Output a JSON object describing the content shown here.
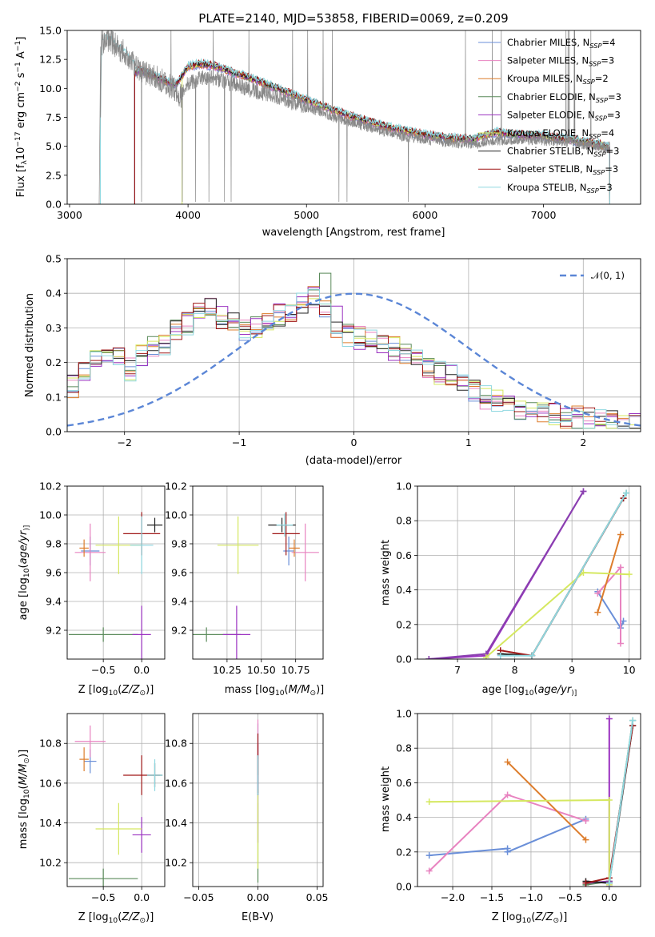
{
  "chart_data": [
    {
      "type": "line",
      "title": "PLATE=2140, MJD=53858, FIBERID=0069, z=0.209",
      "xlabel": "wavelength [Angstrom, rest frame]",
      "ylabel": "Flux [f$_\\lambda$10$^{-17}$ erg cm$^{-2}$ s$^{-1}$ A$^{-1}$]",
      "ylabel_parts": [
        "Flux [f",
        "λ",
        "10",
        "−17",
        " erg cm",
        "−2",
        " s",
        "−1",
        " A",
        "−1",
        "]"
      ],
      "xlim": [
        2980,
        7820
      ],
      "ylim": [
        0,
        15
      ],
      "xticks": [
        3000,
        4000,
        5000,
        6000,
        7000
      ],
      "yticks": [
        0.0,
        2.5,
        5.0,
        7.5,
        10.0,
        12.5,
        15.0
      ],
      "legend_position": "top-right",
      "legend": [
        "Chabrier MILES, N$_{SSP}$=4",
        "Salpeter MILES, N$_{SSP}$=3",
        "Kroupa MILES, N$_{SSP}$=2",
        "Chabrier ELODIE, N$_{SSP}$=3",
        "Salpeter ELODIE, N$_{SSP}$=3",
        "Kroupa ELODIE, N$_{SSP}$=4",
        "Chabrier STELIB, N$_{SSP}$=3",
        "Salpeter STELIB, N$_{SSP}$=3",
        "Kroupa STELIB, N$_{SSP}$=3"
      ],
      "legend_parts": [
        [
          "Chabrier MILES, N",
          "SSP",
          "=4"
        ],
        [
          "Salpeter MILES, N",
          "SSP",
          "=3"
        ],
        [
          "Kroupa MILES, N",
          "SSP",
          "=2"
        ],
        [
          "Chabrier ELODIE, N",
          "SSP",
          "=3"
        ],
        [
          "Salpeter ELODIE, N",
          "SSP",
          "=3"
        ],
        [
          "Kroupa ELODIE, N",
          "SSP",
          "=4"
        ],
        [
          "Chabrier STELIB, N",
          "SSP",
          "=3"
        ],
        [
          "Salpeter STELIB, N",
          "SSP",
          "=3"
        ],
        [
          "Kroupa STELIB, N",
          "SSP",
          "=3"
        ]
      ],
      "data_spectrum": {
        "x": [
          3250,
          3270,
          3300,
          3350,
          3400,
          3450,
          3500,
          3550,
          3600,
          3650,
          3700,
          3750,
          3800,
          3850,
          3900,
          3950,
          4000,
          4100,
          4200,
          4300,
          4400,
          4500,
          4600,
          4700,
          4800,
          4900,
          5000,
          5200,
          5400,
          5600,
          5800,
          6000,
          6200,
          6400,
          6600,
          6800,
          7000,
          7200,
          7400,
          7550
        ],
        "y": [
          0,
          13.8,
          14.3,
          14.1,
          13.6,
          13.2,
          12.6,
          12.0,
          11.6,
          11.3,
          11.1,
          10.8,
          10.6,
          10.2,
          9.9,
          9.2,
          10.3,
          10.9,
          11.0,
          10.6,
          10.3,
          10.0,
          9.7,
          9.5,
          9.1,
          8.7,
          8.4,
          7.6,
          7.0,
          6.4,
          5.9,
          5.6,
          5.3,
          5.2,
          5.5,
          5.6,
          5.5,
          5.3,
          5.1,
          4.8
        ]
      },
      "model_spectrum": {
        "x": [
          3550,
          3600,
          3700,
          3800,
          3900,
          4000,
          4100,
          4200,
          4300,
          4400,
          4500,
          4600,
          4700,
          4800,
          4900,
          5000,
          5200,
          5400,
          5600,
          5800,
          6000,
          6200,
          6400,
          6600,
          6800,
          7000,
          7200,
          7400,
          7550
        ],
        "y": [
          11.3,
          11.6,
          11.1,
          10.7,
          10.3,
          11.9,
          12.1,
          12.0,
          11.7,
          11.3,
          11.0,
          10.6,
          10.2,
          9.8,
          9.4,
          9.0,
          8.2,
          7.5,
          6.9,
          6.4,
          6.0,
          5.7,
          5.6,
          6.2,
          6.0,
          5.9,
          5.6,
          5.3,
          5.0
        ]
      }
    },
    {
      "type": "line",
      "xlabel": "(data-model)/error",
      "ylabel": "Normed distribution",
      "xlim": [
        -2.5,
        2.5
      ],
      "ylim": [
        0,
        0.5
      ],
      "xticks": [
        -2,
        -1,
        0,
        1,
        2
      ],
      "yticks": [
        0.0,
        0.1,
        0.2,
        0.3,
        0.4,
        0.5
      ],
      "grid": true,
      "legend_position": "top-right",
      "legend": [
        "$\\mathcal{N}(0, 1)$"
      ],
      "legend_text": "𝒩(0, 1)",
      "curve": "standard normal density, dashed",
      "histogram_bins": [
        -2.5,
        -2.4,
        -2.3,
        -2.2,
        -2.1,
        -2.0,
        -1.9,
        -1.8,
        -1.7,
        -1.6,
        -1.5,
        -1.4,
        -1.3,
        -1.2,
        -1.1,
        -1.0,
        -0.9,
        -0.8,
        -0.7,
        -0.6,
        -0.5,
        -0.4,
        -0.3,
        -0.2,
        -0.1,
        0.0,
        0.1,
        0.2,
        0.3,
        0.4,
        0.5,
        0.6,
        0.7,
        0.8,
        0.9,
        1.0,
        1.1,
        1.2,
        1.3,
        1.4,
        1.5,
        1.6,
        1.7,
        1.8,
        1.9,
        2.0,
        2.1,
        2.2,
        2.3,
        2.4,
        2.5
      ],
      "histogram_profile": [
        0.13,
        0.17,
        0.2,
        0.22,
        0.21,
        0.18,
        0.22,
        0.25,
        0.25,
        0.29,
        0.31,
        0.35,
        0.36,
        0.33,
        0.31,
        0.29,
        0.3,
        0.32,
        0.34,
        0.35,
        0.37,
        0.39,
        0.36,
        0.3,
        0.28,
        0.27,
        0.28,
        0.26,
        0.24,
        0.22,
        0.21,
        0.19,
        0.17,
        0.16,
        0.14,
        0.12,
        0.1,
        0.09,
        0.08,
        0.07,
        0.06,
        0.055,
        0.05,
        0.045,
        0.04,
        0.035,
        0.03,
        0.03,
        0.025,
        0.025
      ]
    },
    {
      "type": "scatter",
      "xlabel": "Z [log$_{10}$($Z/Z_\\odot$)]",
      "xlabel_parts": [
        "Z [log",
        "10",
        "(",
        "Z/Z",
        "⊙",
        ")]"
      ],
      "ylabel": "age  [log$_{10}$($age/yr$)]",
      "ylabel_parts": [
        "age  [log",
        "10",
        "(",
        "age/yr",
        ")]"
      ],
      "xlim": [
        -0.97,
        0.3
      ],
      "ylim": [
        9.0,
        10.2
      ],
      "xticks": [
        -0.5,
        0.0
      ],
      "yticks": [
        9.2,
        9.4,
        9.6,
        9.8,
        10.0,
        10.2
      ],
      "points": [
        {
          "x": -0.67,
          "y": 9.75,
          "xerr": 0.12,
          "yerr": 0.1
        },
        {
          "x": -0.67,
          "y": 9.74,
          "xerr": 0.2,
          "yerr": 0.2
        },
        {
          "x": -0.75,
          "y": 9.77,
          "xerr": 0.06,
          "yerr": 0.06
        },
        {
          "x": -0.5,
          "y": 9.17,
          "xerr": 0.45,
          "yerr": 0.05
        },
        {
          "x": 0.0,
          "y": 9.17,
          "xerr": 0.12,
          "yerr": 0.2
        },
        {
          "x": -0.3,
          "y": 9.79,
          "xerr": 0.3,
          "yerr": 0.2
        },
        {
          "x": 0.17,
          "y": 9.93,
          "xerr": 0.1,
          "yerr": 0.05
        },
        {
          "x": 0.0,
          "y": 9.87,
          "xerr": 0.24,
          "yerr": 0.15
        },
        {
          "x": 0.0,
          "y": 9.79,
          "xerr": 0.15,
          "yerr": 0.2
        }
      ]
    },
    {
      "type": "scatter",
      "xlabel": "mass [log$_{10}$($M/M_\\odot$)]",
      "xlabel_parts": [
        "mass [log",
        "10",
        "(",
        "M/M",
        "⊙",
        ")]"
      ],
      "xlim": [
        10.0,
        10.95
      ],
      "ylim": [
        9.0,
        10.2
      ],
      "xticks": [
        10.25,
        10.5,
        10.75
      ],
      "yticks": [
        9.2,
        9.4,
        9.6,
        9.8,
        10.0,
        10.2
      ],
      "points": [
        {
          "x": 10.7,
          "y": 9.75,
          "xerr": 0.04,
          "yerr": 0.1
        },
        {
          "x": 10.82,
          "y": 9.74,
          "xerr": 0.1,
          "yerr": 0.2
        },
        {
          "x": 10.74,
          "y": 9.77,
          "xerr": 0.04,
          "yerr": 0.06
        },
        {
          "x": 10.1,
          "y": 9.17,
          "xerr": 0.25,
          "yerr": 0.05
        },
        {
          "x": 10.32,
          "y": 9.17,
          "xerr": 0.1,
          "yerr": 0.2
        },
        {
          "x": 10.33,
          "y": 9.79,
          "xerr": 0.15,
          "yerr": 0.2
        },
        {
          "x": 10.65,
          "y": 9.93,
          "xerr": 0.1,
          "yerr": 0.05
        },
        {
          "x": 10.68,
          "y": 9.87,
          "xerr": 0.1,
          "yerr": 0.15
        },
        {
          "x": 10.67,
          "y": 9.93,
          "xerr": 0.06,
          "yerr": 0.08
        }
      ]
    },
    {
      "type": "line",
      "xlabel": "age  [log$_{10}$($age/yr$)]",
      "xlabel_parts": [
        "age  [log",
        "10",
        "(",
        "age/yr",
        ")]"
      ],
      "ylabel": "mass weight",
      "xlim": [
        6.3,
        10.2
      ],
      "ylim": [
        0,
        1.0
      ],
      "xticks": [
        7,
        8,
        9,
        10
      ],
      "yticks": [
        0.0,
        0.2,
        0.4,
        0.6,
        0.8,
        1.0
      ],
      "grid": true,
      "series": [
        {
          "x": [
            9.45,
            9.85,
            9.9
          ],
          "y": [
            0.39,
            0.18,
            0.22
          ]
        },
        {
          "x": [
            9.45,
            9.85,
            9.85
          ],
          "y": [
            0.38,
            0.53,
            0.09
          ]
        },
        {
          "x": [
            9.45,
            9.85
          ],
          "y": [
            0.27,
            0.72
          ]
        },
        {
          "x": [
            7.75,
            8.3,
            9.95
          ],
          "y": [
            0.03,
            0.02,
            0.96
          ]
        },
        {
          "x": [
            6.5,
            7.5,
            9.2
          ],
          "y": [
            0.0,
            0.02,
            0.97
          ]
        },
        {
          "x": [
            6.5,
            7.5,
            9.2
          ],
          "y": [
            0.0,
            0.03,
            0.97
          ]
        },
        {
          "x": [
            7.75,
            8.3,
            9.9
          ],
          "y": [
            0.03,
            0.02,
            0.93
          ]
        },
        {
          "x": [
            7.75,
            8.3,
            9.9
          ],
          "y": [
            0.05,
            0.02,
            0.93
          ]
        },
        {
          "x": [
            7.5,
            9.2,
            10.0
          ],
          "y": [
            0.01,
            0.5,
            0.49
          ]
        },
        {
          "x": [
            7.75,
            8.3,
            9.95
          ],
          "y": [
            0.02,
            0.02,
            0.96
          ]
        }
      ]
    },
    {
      "type": "scatter",
      "xlabel": "Z [log$_{10}$($Z/Z_\\odot$)]",
      "xlabel_parts": [
        "Z [log",
        "10",
        "(",
        "Z/Z",
        "⊙",
        ")]"
      ],
      "ylabel": "mass [log$_{10}$($M/M_\\odot$)]",
      "ylabel_parts": [
        "mass [log",
        "10",
        "(",
        "M/M",
        "⊙",
        ")]"
      ],
      "xlim": [
        -0.97,
        0.3
      ],
      "ylim": [
        10.08,
        10.95
      ],
      "yticks": [
        10.2,
        10.4,
        10.6,
        10.8
      ],
      "xticks": [
        -0.5,
        0.0
      ],
      "points": [
        {
          "x": -0.67,
          "y": 10.71,
          "xerr": 0.08,
          "yerr": 0.06
        },
        {
          "x": -0.67,
          "y": 10.81,
          "xerr": 0.2,
          "yerr": 0.08
        },
        {
          "x": -0.75,
          "y": 10.72,
          "xerr": 0.06,
          "yerr": 0.06
        },
        {
          "x": -0.5,
          "y": 10.12,
          "xerr": 0.45,
          "yerr": 0.05
        },
        {
          "x": 0.0,
          "y": 10.34,
          "xerr": 0.12,
          "yerr": 0.09
        },
        {
          "x": -0.3,
          "y": 10.37,
          "xerr": 0.3,
          "yerr": 0.13
        },
        {
          "x": 0.17,
          "y": 10.64,
          "xerr": 0.1,
          "yerr": 0.06
        },
        {
          "x": 0.0,
          "y": 10.64,
          "xerr": 0.24,
          "yerr": 0.1
        },
        {
          "x": 0.17,
          "y": 10.64,
          "xerr": 0.1,
          "yerr": 0.08
        }
      ]
    },
    {
      "type": "scatter",
      "xlabel": "E(B-V)",
      "xlim": [
        -0.055,
        0.055
      ],
      "ylim": [
        10.08,
        10.95
      ],
      "xticks": [
        -0.05,
        0.0,
        0.05
      ],
      "yticks": [
        10.2,
        10.4,
        10.6,
        10.8
      ],
      "points": [
        {
          "x": 0.0,
          "y": 10.7,
          "xerr": 0.0,
          "yerr": 0.2
        },
        {
          "x": 0.0,
          "y": 10.82,
          "xerr": 0.0,
          "yerr": 0.1
        },
        {
          "x": 0.0,
          "y": 10.72,
          "xerr": 0.0,
          "yerr": 0.08
        },
        {
          "x": 0.0,
          "y": 10.3,
          "xerr": 0.0,
          "yerr": 0.2
        },
        {
          "x": 0.0,
          "y": 10.55,
          "xerr": 0.0,
          "yerr": 0.25
        },
        {
          "x": 0.0,
          "y": 10.37,
          "xerr": 0.0,
          "yerr": 0.2
        },
        {
          "x": 0.0,
          "y": 10.64,
          "xerr": 0.0,
          "yerr": 0.1
        },
        {
          "x": 0.0,
          "y": 10.7,
          "xerr": 0.0,
          "yerr": 0.15
        },
        {
          "x": 0.0,
          "y": 10.64,
          "xerr": 0.0,
          "yerr": 0.1
        }
      ]
    },
    {
      "type": "line",
      "xlabel": "Z [log$_{10}$($Z/Z_\\odot$)]",
      "xlabel_parts": [
        "Z [log",
        "10",
        "(",
        "Z/Z",
        "⊙",
        ")]"
      ],
      "ylabel": "mass weight",
      "xlim": [
        -2.45,
        0.4
      ],
      "ylim": [
        0,
        1.0
      ],
      "xticks": [
        -2.0,
        -1.5,
        -1.0,
        -0.5,
        0.0
      ],
      "yticks": [
        0.0,
        0.2,
        0.4,
        0.6,
        0.8,
        1.0
      ],
      "grid": true,
      "series": [
        {
          "x": [
            -2.3,
            -1.3,
            -1.3,
            -0.3
          ],
          "y": [
            0.18,
            0.22,
            0.2,
            0.39
          ]
        },
        {
          "x": [
            -2.3,
            -1.3,
            -0.3
          ],
          "y": [
            0.09,
            0.53,
            0.38
          ]
        },
        {
          "x": [
            -1.3,
            -0.3
          ],
          "y": [
            0.72,
            0.27
          ]
        },
        {
          "x": [
            -0.3,
            0.0,
            0.3
          ],
          "y": [
            0.01,
            0.03,
            0.96
          ]
        },
        {
          "x": [
            0.0,
            0.0,
            0.0
          ],
          "y": [
            0.02,
            0.97,
            0.0
          ]
        },
        {
          "x": [
            -0.3,
            0.0
          ],
          "y": [
            0.02,
            0.03
          ]
        },
        {
          "x": [
            -0.3,
            0.0,
            0.3
          ],
          "y": [
            0.03,
            0.02,
            0.93
          ]
        },
        {
          "x": [
            -0.3,
            0.0,
            0.3
          ],
          "y": [
            0.02,
            0.05,
            0.93
          ]
        },
        {
          "x": [
            -2.3,
            0.0,
            0.0
          ],
          "y": [
            0.49,
            0.5,
            0.01
          ]
        },
        {
          "x": [
            0.0,
            0.3
          ],
          "y": [
            0.02,
            0.96
          ]
        }
      ]
    }
  ],
  "colors": [
    "#6a8fd8",
    "#e883c0",
    "#dd7d2c",
    "#5a8a5a",
    "#9a30c0",
    "#d5e860",
    "#222222",
    "#a01818",
    "#8fd8e0"
  ],
  "data_color": "#888888",
  "normal_color": "#5b86d6"
}
